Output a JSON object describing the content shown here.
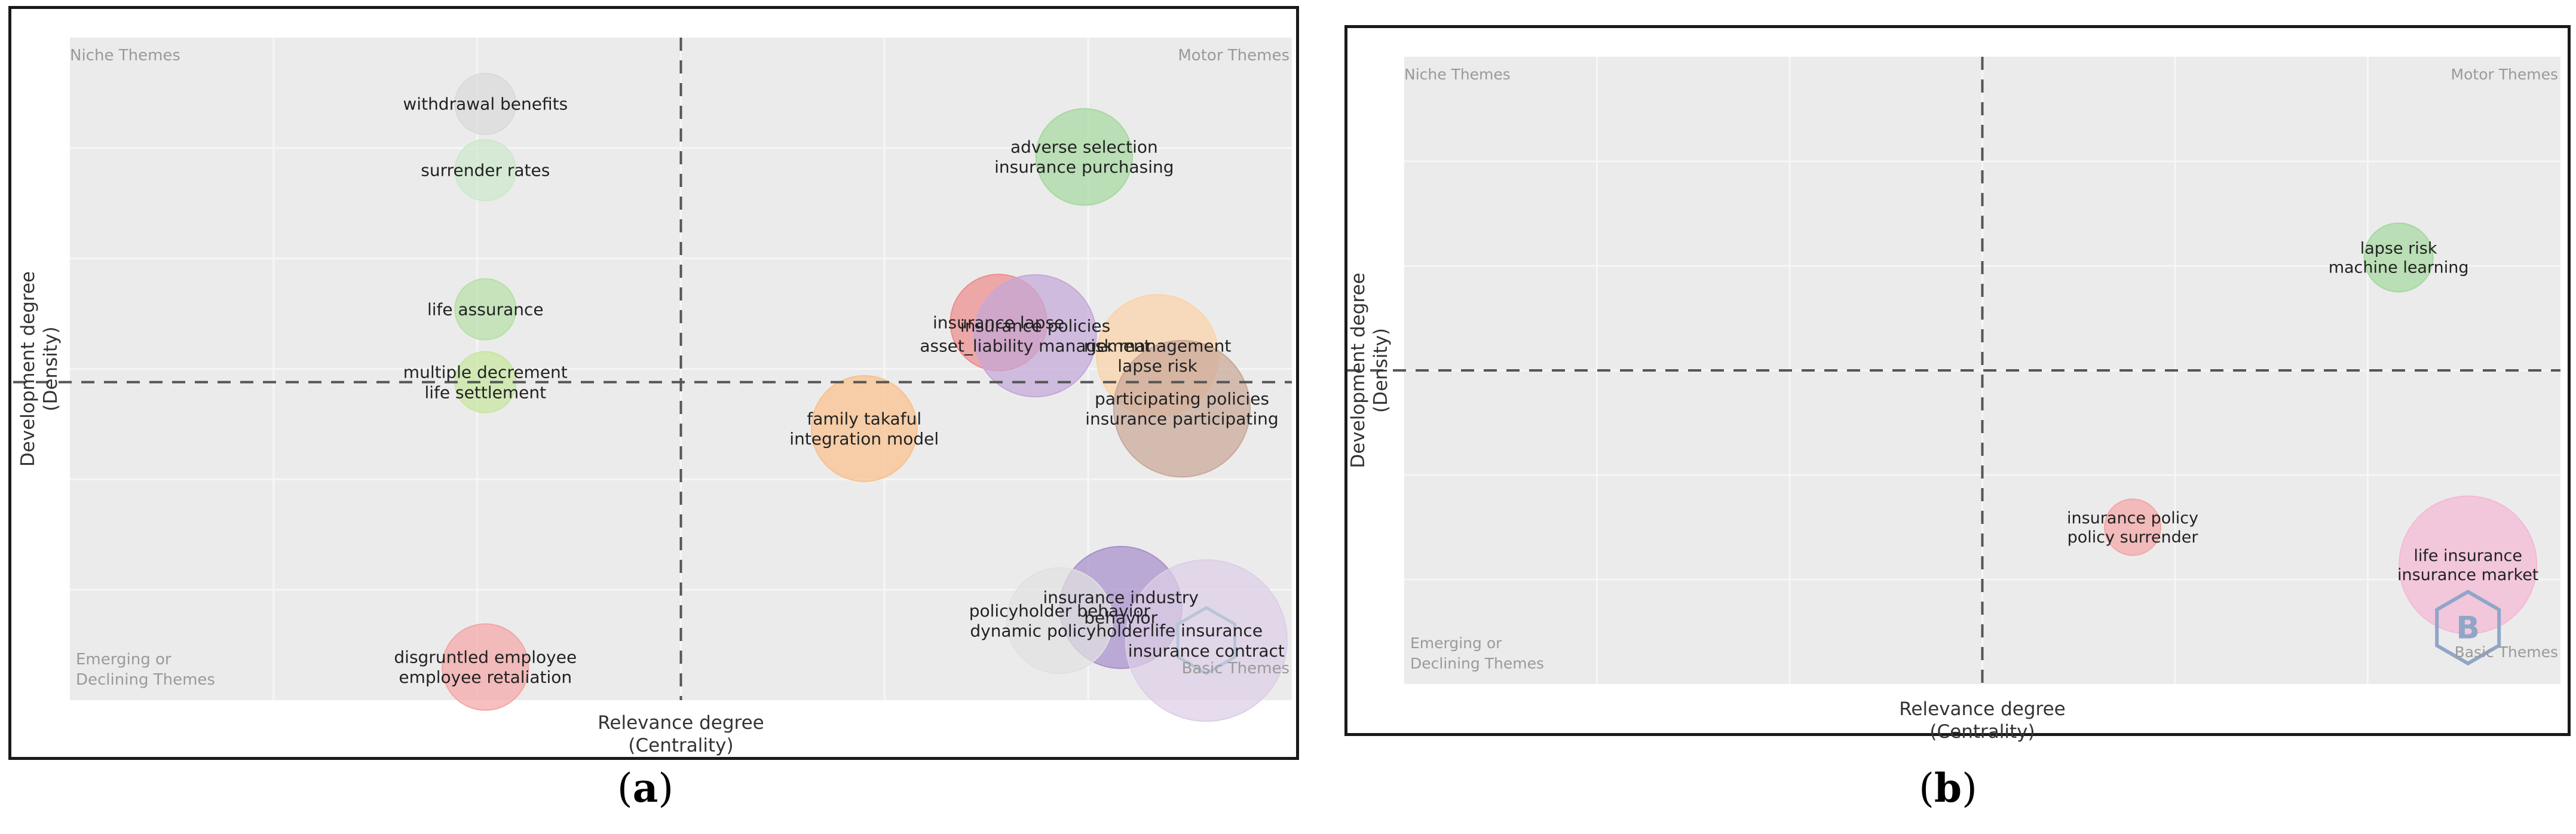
{
  "chart_data": [
    {
      "panel": "a",
      "type": "scatter",
      "subtype": "thematic-map-bubble",
      "xlabel": "Relevance degree",
      "xlabel_sub": "(Centrality)",
      "ylabel": "Development degree",
      "ylabel_sub": "(Density)",
      "quadrants": {
        "top_left": "Niche Themes",
        "top_right": "Motor Themes",
        "bottom_left_line1": "Emerging or",
        "bottom_left_line2": "Declining Themes",
        "bottom_right": "Basic Themes"
      },
      "xlim": [
        0,
        100
      ],
      "ylim": [
        0,
        100
      ],
      "divider": {
        "x": 50,
        "y": 48
      },
      "points": [
        {
          "labels": [
            "withdrawal benefits"
          ],
          "x": 34,
          "y": 90,
          "size": 2,
          "color": "#d9d9d9"
        },
        {
          "labels": [
            "surrender rates"
          ],
          "x": 34,
          "y": 80,
          "size": 2,
          "color": "#cce8cc"
        },
        {
          "labels": [
            "life assurance"
          ],
          "x": 34,
          "y": 59,
          "size": 2,
          "color": "#b7dfa8"
        },
        {
          "labels": [
            "multiple decrement",
            "life settlement"
          ],
          "x": 34,
          "y": 48,
          "size": 2,
          "color": "#c6e6a0"
        },
        {
          "labels": [
            "disgruntled employee",
            "employee retaliation"
          ],
          "x": 34,
          "y": 5,
          "size": 4,
          "color": "#f4a6a6"
        },
        {
          "labels": [
            "adverse selection",
            "insurance purchasing"
          ],
          "x": 83,
          "y": 82,
          "size": 5,
          "color": "#a6d8a0"
        },
        {
          "labels": [
            "insurance lapse"
          ],
          "x": 76,
          "y": 57,
          "size": 5,
          "color": "#ee8c8c"
        },
        {
          "labels": [
            "insurance policies",
            "asset_liability management"
          ],
          "x": 79,
          "y": 55,
          "size": 8,
          "color": "#c4a8d8"
        },
        {
          "labels": [
            "risk management",
            "lapse risk"
          ],
          "x": 89,
          "y": 52,
          "size": 8,
          "color": "#fbd3a8"
        },
        {
          "labels": [
            "participating policies",
            "insurance participating"
          ],
          "x": 91,
          "y": 44,
          "size": 10,
          "color": "#c9a898"
        },
        {
          "labels": [
            "family takaful",
            "integration model"
          ],
          "x": 65,
          "y": 41,
          "size": 6,
          "color": "#f9c08c"
        },
        {
          "labels": [
            "insurance industry",
            "behavior"
          ],
          "x": 86,
          "y": 14,
          "size": 8,
          "color": "#a88fcc"
        },
        {
          "labels": [
            "policyholder behavior",
            "dynamic policyholder"
          ],
          "x": 81,
          "y": 12,
          "size": 6,
          "color": "#e0e0e0"
        },
        {
          "labels": [
            "life insurance",
            "insurance contract"
          ],
          "x": 93,
          "y": 9,
          "size": 14,
          "color": "#dccfe6"
        }
      ]
    },
    {
      "panel": "b",
      "type": "scatter",
      "subtype": "thematic-map-bubble",
      "xlabel": "Relevance degree",
      "xlabel_sub": "(Centrality)",
      "ylabel": "Development degree",
      "ylabel_sub": "(Density)",
      "quadrants": {
        "top_left": "Niche Themes",
        "top_right": "Motor Themes",
        "bottom_left_line1": "Emerging or",
        "bottom_left_line2": "Declining Themes",
        "bottom_right": "Basic Themes"
      },
      "xlim": [
        0,
        100
      ],
      "ylim": [
        0,
        100
      ],
      "divider": {
        "x": 50,
        "y": 50
      },
      "points": [
        {
          "labels": [
            "lapse risk",
            "machine learning"
          ],
          "x": 86,
          "y": 68,
          "size": 3,
          "color": "#a6d8a0"
        },
        {
          "labels": [
            "insurance policy",
            "policy surrender"
          ],
          "x": 63,
          "y": 25,
          "size": 2,
          "color": "#f4a6a6"
        },
        {
          "labels": [
            "life insurance",
            "insurance market"
          ],
          "x": 92,
          "y": 19,
          "size": 12,
          "color": "#f4b8d4"
        }
      ]
    }
  ],
  "captions": {
    "a": "a",
    "b": "b"
  },
  "logo": {
    "name": "bibliometrix-hex-logo",
    "glyph": "B"
  }
}
